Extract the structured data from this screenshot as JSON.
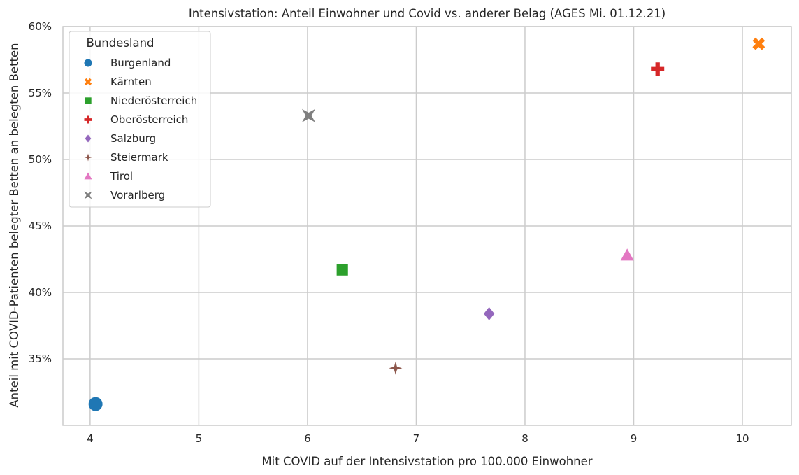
{
  "chart_data": {
    "type": "scatter",
    "title": "Intensivstation: Anteil Einwohner und Covid vs. anderer Belag (AGES Mi. 01.12.21)",
    "xlabel": "Mit COVID auf der Intensivstation pro 100.000 Einwohner",
    "ylabel": "Anteil mit COVID-Patienten belegter Betten an belegten Betten",
    "xlim": [
      3.75,
      10.45
    ],
    "ylim": [
      0.3,
      0.6
    ],
    "x_ticks": [
      4,
      5,
      6,
      7,
      8,
      9,
      10
    ],
    "y_ticks": [
      0.35,
      0.4,
      0.45,
      0.5,
      0.55,
      0.6
    ],
    "y_tick_labels": [
      "35%",
      "40%",
      "45%",
      "50%",
      "55%",
      "60%"
    ],
    "grid": true,
    "legend": {
      "title": "Bundesland",
      "placement": "top-left"
    },
    "series": [
      {
        "name": "Burgenland",
        "x": 4.05,
        "y": 0.316,
        "color": "#1f77b4",
        "marker": "circle"
      },
      {
        "name": "Kärnten",
        "x": 10.15,
        "y": 0.587,
        "color": "#ff7f0e",
        "marker": "x"
      },
      {
        "name": "Niederösterreich",
        "x": 6.32,
        "y": 0.417,
        "color": "#2ca02c",
        "marker": "square"
      },
      {
        "name": "Oberösterreich",
        "x": 9.22,
        "y": 0.568,
        "color": "#d62728",
        "marker": "plus"
      },
      {
        "name": "Salzburg",
        "x": 7.67,
        "y": 0.384,
        "color": "#9467bd",
        "marker": "diamond"
      },
      {
        "name": "Steiermark",
        "x": 6.81,
        "y": 0.343,
        "color": "#8c564b",
        "marker": "star4"
      },
      {
        "name": "Tirol",
        "x": 8.94,
        "y": 0.428,
        "color": "#e377c2",
        "marker": "triangle"
      },
      {
        "name": "Vorarlberg",
        "x": 6.01,
        "y": 0.533,
        "color": "#7f7f7f",
        "marker": "hourglass"
      }
    ]
  }
}
